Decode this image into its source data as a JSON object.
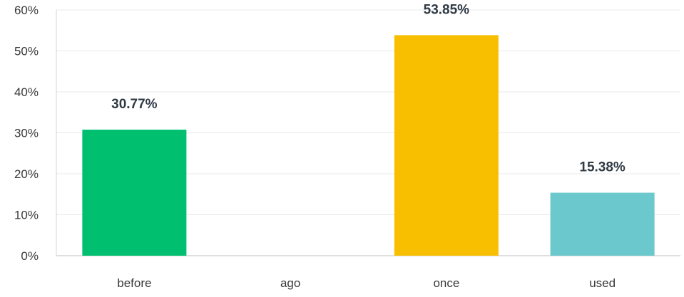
{
  "chart_data": {
    "type": "bar",
    "title": "",
    "xlabel": "",
    "ylabel": "",
    "categories": [
      "before",
      "ago",
      "once",
      "used"
    ],
    "values": [
      30.77,
      0,
      53.85,
      15.38
    ],
    "value_labels": [
      "30.77%",
      "",
      "53.85%",
      "15.38%"
    ],
    "bar_colors": [
      "#00bf6f",
      "#00bf6f",
      "#f8be00",
      "#6bc8cd"
    ],
    "ylim": [
      0,
      60
    ],
    "yticks": [
      0,
      10,
      20,
      30,
      40,
      50,
      60
    ],
    "ytick_labels": [
      "0%",
      "10%",
      "20%",
      "30%",
      "40%",
      "50%",
      "60%"
    ],
    "grid": true,
    "legend": "none"
  }
}
